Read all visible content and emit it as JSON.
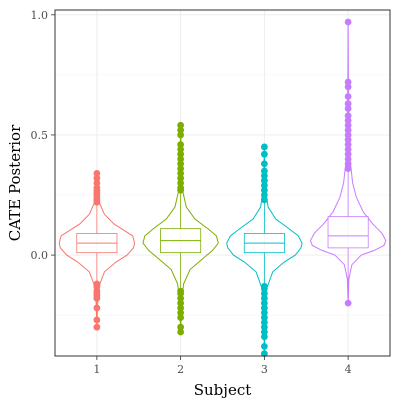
{
  "chart_data": {
    "type": "violin",
    "xlabel": "Subject",
    "ylabel": "CATE Posterior",
    "categories": [
      "1",
      "2",
      "3",
      "4"
    ],
    "ylim": [
      -0.42,
      1.02
    ],
    "yticks": [
      "0.0",
      "0.5",
      "1.0"
    ],
    "ytick_values": [
      0.0,
      0.5,
      1.0
    ],
    "grid": true,
    "legend": "none",
    "series": [
      {
        "category": "1",
        "color": "#F8766D",
        "min": -0.3,
        "q1": 0.01,
        "median": 0.05,
        "q3": 0.09,
        "max": 0.34,
        "outliers": [
          -0.3,
          -0.27,
          -0.22,
          -0.18,
          -0.17,
          -0.16,
          -0.15,
          -0.13,
          -0.12,
          0.22,
          0.23,
          0.24,
          0.25,
          0.26,
          0.27,
          0.28,
          0.3,
          0.32,
          0.34
        ],
        "violin": [
          [
            -0.3,
            0.002
          ],
          [
            -0.2,
            0.02
          ],
          [
            -0.12,
            0.08
          ],
          [
            -0.07,
            0.2
          ],
          [
            -0.03,
            0.5
          ],
          [
            0.0,
            0.8
          ],
          [
            0.03,
            0.97
          ],
          [
            0.05,
            1.0
          ],
          [
            0.08,
            0.95
          ],
          [
            0.1,
            0.75
          ],
          [
            0.13,
            0.45
          ],
          [
            0.17,
            0.2
          ],
          [
            0.22,
            0.06
          ],
          [
            0.28,
            0.02
          ],
          [
            0.34,
            0.002
          ]
        ]
      },
      {
        "category": "2",
        "color": "#7CAE00",
        "min": -0.32,
        "q1": 0.01,
        "median": 0.06,
        "q3": 0.11,
        "max": 0.54,
        "outliers": [
          -0.32,
          -0.3,
          -0.26,
          -0.24,
          -0.22,
          -0.2,
          -0.18,
          -0.16,
          -0.15,
          0.27,
          0.28,
          0.3,
          0.32,
          0.34,
          0.36,
          0.38,
          0.4,
          0.42,
          0.44,
          0.46,
          0.5,
          0.52,
          0.54
        ],
        "violin": [
          [
            -0.32,
            0.002
          ],
          [
            -0.2,
            0.02
          ],
          [
            -0.12,
            0.08
          ],
          [
            -0.06,
            0.25
          ],
          [
            -0.02,
            0.55
          ],
          [
            0.02,
            0.85
          ],
          [
            0.05,
            1.0
          ],
          [
            0.08,
            0.95
          ],
          [
            0.11,
            0.72
          ],
          [
            0.15,
            0.38
          ],
          [
            0.2,
            0.15
          ],
          [
            0.27,
            0.05
          ],
          [
            0.36,
            0.02
          ],
          [
            0.46,
            0.008
          ],
          [
            0.54,
            0.002
          ]
        ]
      },
      {
        "category": "3",
        "color": "#00BFC4",
        "min": -0.41,
        "q1": 0.01,
        "median": 0.05,
        "q3": 0.09,
        "max": 0.45,
        "outliers": [
          -0.41,
          -0.38,
          -0.34,
          -0.32,
          -0.3,
          -0.28,
          -0.26,
          -0.24,
          -0.22,
          -0.2,
          -0.18,
          -0.16,
          -0.14,
          -0.13,
          0.23,
          0.25,
          0.27,
          0.29,
          0.31,
          0.33,
          0.35,
          0.38,
          0.42,
          0.45
        ],
        "violin": [
          [
            -0.41,
            0.002
          ],
          [
            -0.25,
            0.015
          ],
          [
            -0.14,
            0.06
          ],
          [
            -0.07,
            0.22
          ],
          [
            -0.03,
            0.52
          ],
          [
            0.0,
            0.82
          ],
          [
            0.03,
            0.97
          ],
          [
            0.05,
            1.0
          ],
          [
            0.08,
            0.9
          ],
          [
            0.11,
            0.65
          ],
          [
            0.15,
            0.3
          ],
          [
            0.2,
            0.1
          ],
          [
            0.27,
            0.03
          ],
          [
            0.37,
            0.01
          ],
          [
            0.45,
            0.002
          ]
        ]
      },
      {
        "category": "4",
        "color": "#C77CFF",
        "min": -0.2,
        "q1": 0.03,
        "median": 0.08,
        "q3": 0.16,
        "max": 0.97,
        "outliers": [
          -0.2,
          0.36,
          0.38,
          0.4,
          0.42,
          0.44,
          0.46,
          0.48,
          0.5,
          0.52,
          0.54,
          0.56,
          0.58,
          0.61,
          0.63,
          0.66,
          0.7,
          0.72,
          0.97
        ],
        "violin": [
          [
            -0.2,
            0.002
          ],
          [
            -0.1,
            0.02
          ],
          [
            -0.04,
            0.1
          ],
          [
            0.0,
            0.35
          ],
          [
            0.02,
            0.7
          ],
          [
            0.04,
            0.95
          ],
          [
            0.06,
            1.0
          ],
          [
            0.09,
            0.9
          ],
          [
            0.13,
            0.65
          ],
          [
            0.18,
            0.4
          ],
          [
            0.24,
            0.22
          ],
          [
            0.3,
            0.12
          ],
          [
            0.4,
            0.05
          ],
          [
            0.55,
            0.02
          ],
          [
            0.72,
            0.008
          ],
          [
            0.97,
            0.001
          ]
        ]
      }
    ]
  }
}
